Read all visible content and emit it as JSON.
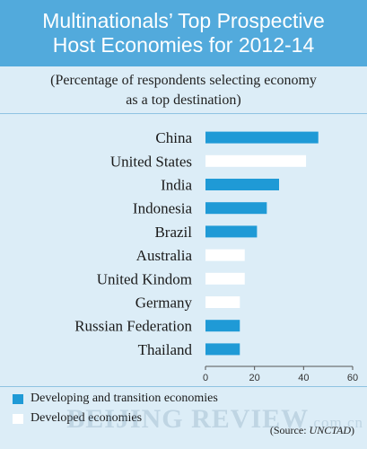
{
  "header": {
    "title_line1": "Multinationals’ Top Prospective",
    "title_line2": "Host Economies for 2012-14"
  },
  "subtitle": {
    "line1": "(Percentage of respondents selecting economy",
    "line2": "as a top destination)"
  },
  "chart_data": {
    "type": "bar",
    "orientation": "horizontal",
    "categories": [
      "China",
      "United States",
      "India",
      "Indonesia",
      "Brazil",
      "Australia",
      "United Kindom",
      "Germany",
      "Russian Federation",
      "Thailand"
    ],
    "values": [
      46,
      41,
      30,
      25,
      21,
      16,
      16,
      14,
      14,
      14
    ],
    "groups": [
      "developing",
      "developed",
      "developing",
      "developing",
      "developing",
      "developed",
      "developed",
      "developed",
      "developing",
      "developing"
    ],
    "xticks": [
      0,
      20,
      40,
      60
    ],
    "xlim": [
      0,
      60
    ],
    "legend_position": "bottom-left"
  },
  "legend": {
    "developing": {
      "label": "Developing and transition economies",
      "color": "#1f9ad6"
    },
    "developed": {
      "label": "Developed economies",
      "color": "#ffffff"
    }
  },
  "source": {
    "prefix": "(Source: ",
    "name": "UNCTAD",
    "suffix": ")"
  },
  "watermark": {
    "main": "BEIJING REVIEW",
    "suffix": ".com.cn"
  },
  "colors": {
    "header": "#52aadc",
    "background": "#dcedf7"
  }
}
